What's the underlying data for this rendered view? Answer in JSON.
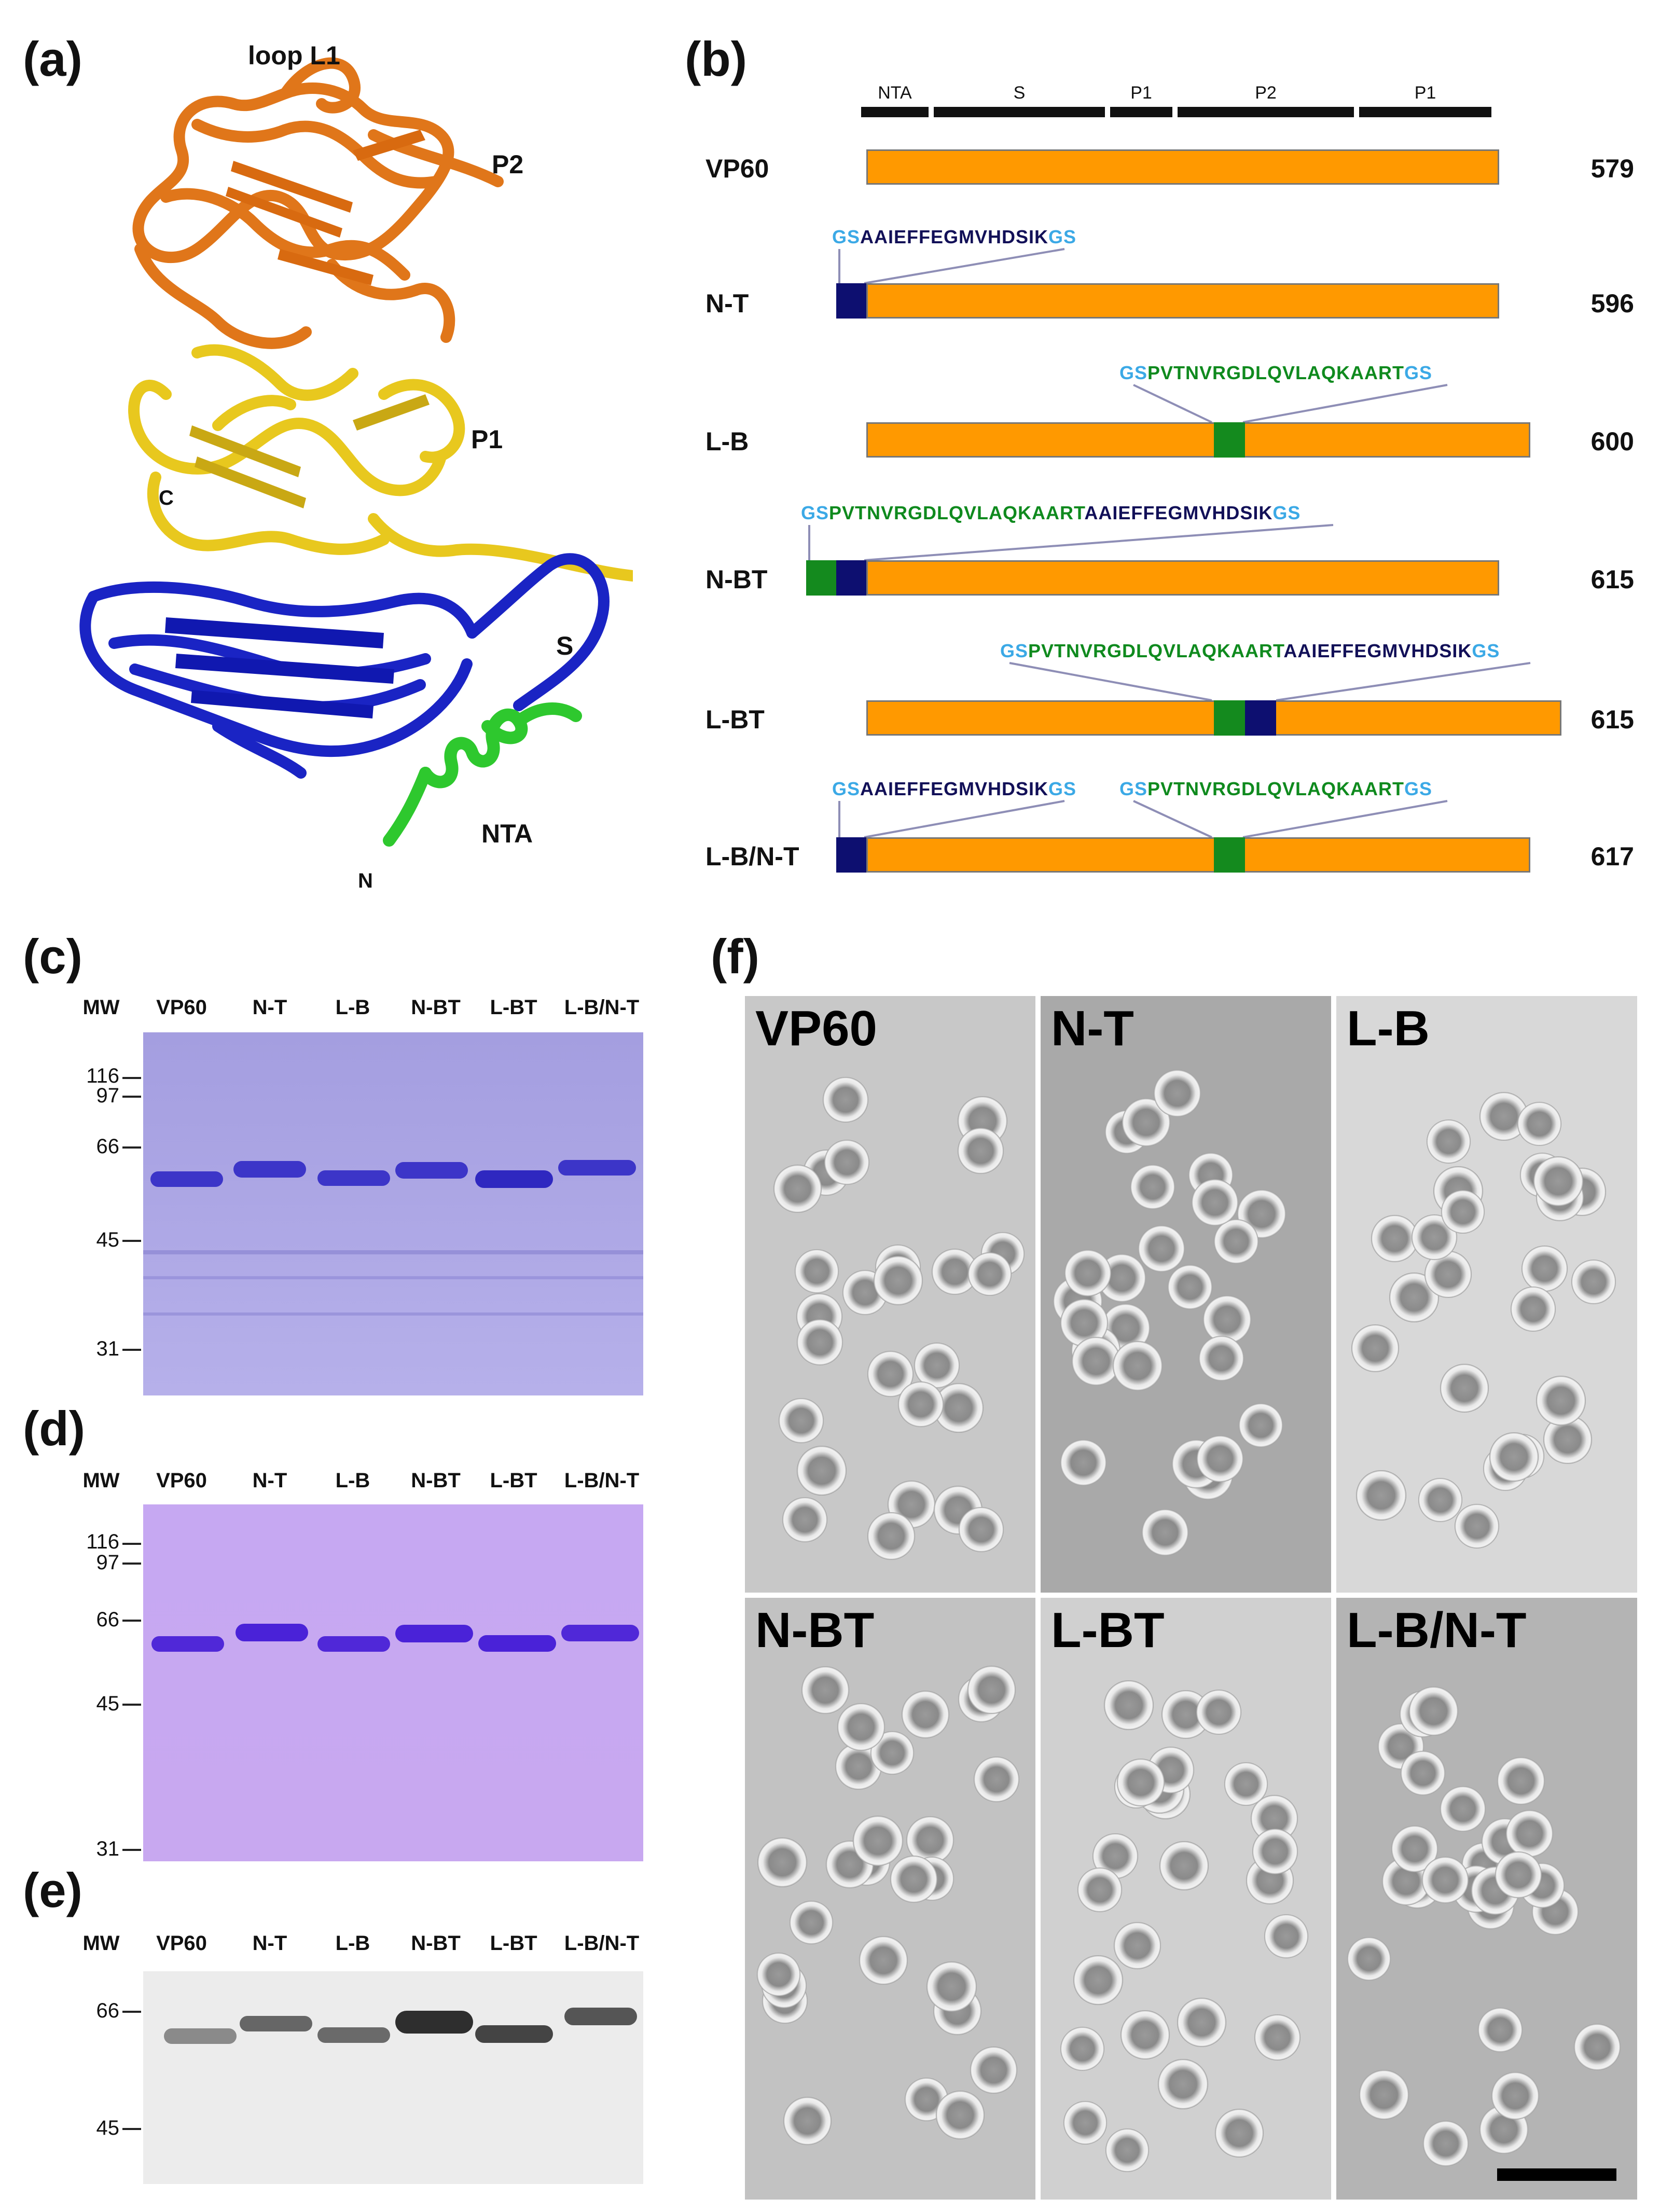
{
  "panels": {
    "a": "(a)",
    "b": "(b)",
    "c": "(c)",
    "d": "(d)",
    "e": "(e)",
    "f": "(f)"
  },
  "structure": {
    "labels": {
      "loop": "loop L1",
      "p2": "P2",
      "p1": "P1",
      "c_term": "C",
      "s": "S",
      "nta": "NTA",
      "n_term": "N"
    },
    "colors": {
      "p2": "#e0761a",
      "p1": "#e8c81e",
      "s": "#1a24c4",
      "nta": "#2ec82e"
    }
  },
  "constructs": {
    "domains": [
      "NTA",
      "S",
      "P1",
      "P2",
      "P1"
    ],
    "gs": "GS",
    "tag_t": "AAIEFFEGMVHDSIK",
    "tag_b": "PVTNVRGDLQVLAQKAART",
    "rows": [
      {
        "name": "VP60",
        "length": "579"
      },
      {
        "name": "N-T",
        "length": "596"
      },
      {
        "name": "L-B",
        "length": "600"
      },
      {
        "name": "N-BT",
        "length": "615"
      },
      {
        "name": "L-BT",
        "length": "615"
      },
      {
        "name": "L-B/N-T",
        "length": "617"
      }
    ],
    "colors": {
      "vp60": "#ff9900",
      "tag_t": "#0d0f70",
      "tag_b": "#148a1e",
      "gs": "#3ba9e6"
    }
  },
  "gels": {
    "mw_label": "MW",
    "lanes": [
      "VP60",
      "N-T",
      "L-B",
      "N-BT",
      "L-BT",
      "L-B/N-T"
    ],
    "c_markers": [
      "116",
      "97",
      "66",
      "45",
      "31"
    ],
    "d_markers": [
      "116",
      "97",
      "66",
      "45",
      "31"
    ],
    "e_markers": [
      "66",
      "45"
    ]
  },
  "em": {
    "tiles": [
      "VP60",
      "N-T",
      "L-B",
      "N-BT",
      "L-BT",
      "L-B/N-T"
    ]
  }
}
